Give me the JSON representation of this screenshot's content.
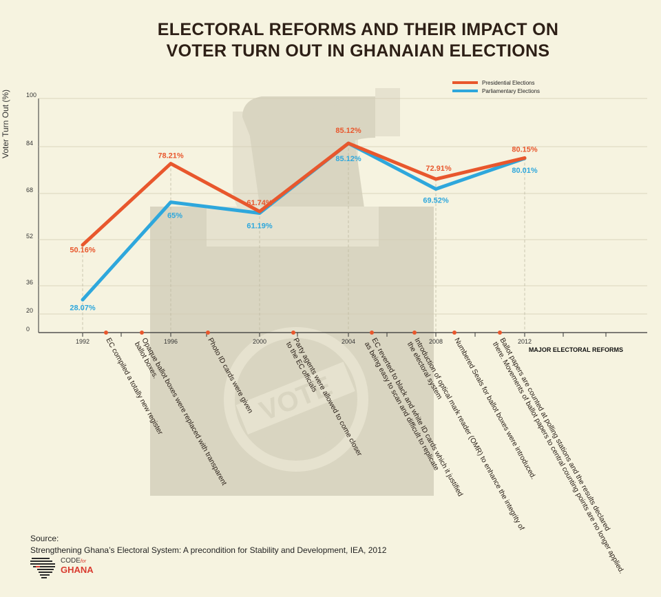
{
  "title_line1": "ELECTORAL REFORMS AND THEIR IMPACT ON",
  "title_line2": "VOTER TURN OUT IN GHANAIAN ELECTIONS",
  "chart_data": {
    "type": "line",
    "title": "ELECTORAL REFORMS AND THEIR IMPACT ON VOTER TURN OUT IN GHANAIAN ELECTIONS",
    "ylabel": "Voter Turn Out (%)",
    "xlabel": "MAJOR ELECTORAL REFORMS",
    "x": [
      "1992",
      "1996",
      "2000",
      "2004",
      "2008",
      "2012"
    ],
    "y_ticks": [
      0,
      20,
      36,
      52,
      68,
      84,
      100
    ],
    "ylim": [
      0,
      100
    ],
    "series": [
      {
        "name": "Presidential Elections",
        "color": "#e8572d",
        "values": [
          50.16,
          78.21,
          61.74,
          85.12,
          72.91,
          80.15
        ],
        "labels": [
          "50.16%",
          "78.21%",
          "61.74%",
          "85.12%",
          "72.91%",
          "80.15%"
        ]
      },
      {
        "name": "Parliamentary Elections",
        "color": "#2ea7dc",
        "values": [
          28.07,
          65,
          61.19,
          85.12,
          69.52,
          80.01
        ],
        "labels": [
          "28.07%",
          "65%",
          "61.19%",
          "85.12%",
          "69.52%",
          "80.01%"
        ]
      }
    ],
    "legend_position": "top-right",
    "annotations": [
      "EC compiled a totally new register",
      "Opaque ballot boxes were replaced with transparent ballot boxes.",
      "Photo ID cards were given",
      "Party agents were allowed to come closer to the EC officials",
      "EC reverted to black and white ID cards which it justified as being easy to scan and difficult to replicate",
      "Introduction of optical mark reader (OMR) to enhance the integrity of the electoral system",
      "Numbered Seals for ballot boxes were introduced.",
      "Ballot papers are counted at polling stations and the results declared there. Movements of ballot papers to central counting points are no longer applied."
    ]
  },
  "source_label": "Source:",
  "source_text": "Strengthening Ghana’s Electoral System: A precondition for Stability and Development, IEA, 2012",
  "logo_top": "CODE",
  "logo_for": "for",
  "logo_bottom": "GHANA",
  "watermark": "VOTE"
}
